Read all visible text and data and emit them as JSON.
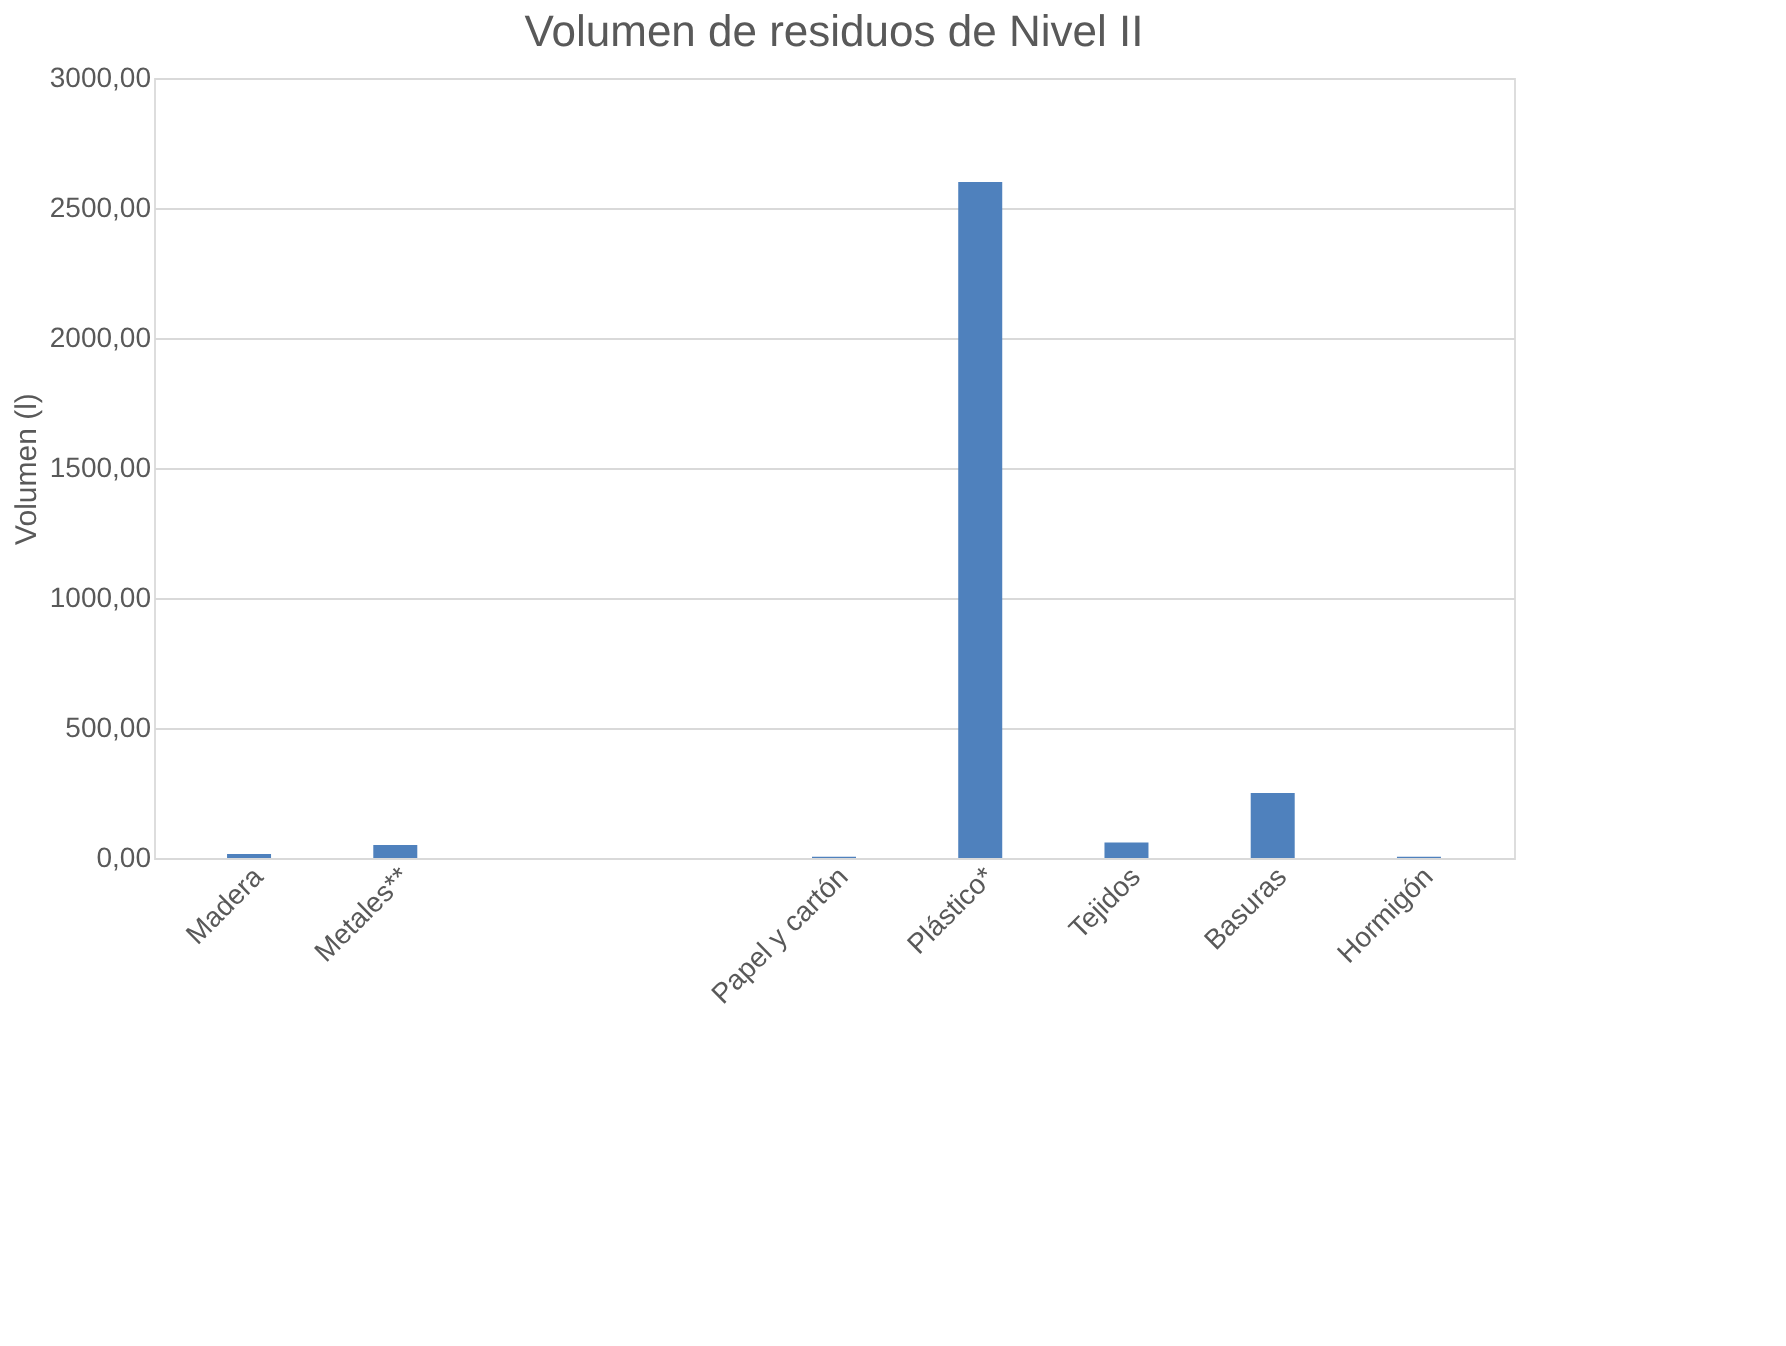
{
  "chart_data": {
    "type": "bar",
    "title": "Volumen de residuos de Nivel II",
    "ylabel": "Volumen (l)",
    "categories": [
      "Madera",
      "Metales**",
      null,
      null,
      "Papel y cartón",
      "Plástico*",
      "Tejidos",
      "Basuras",
      "Hormigón"
    ],
    "values": [
      15,
      50,
      null,
      null,
      5,
      2600,
      60,
      250,
      5
    ],
    "color": "#4f81bd",
    "ylim": [
      0,
      3000
    ],
    "yticks": [
      {
        "value": 0,
        "label": "0,00"
      },
      {
        "value": 500,
        "label": "500,00"
      },
      {
        "value": 1000,
        "label": "1000,00"
      },
      {
        "value": 1500,
        "label": "1500,00"
      },
      {
        "value": 2000,
        "label": "2000,00"
      },
      {
        "value": 2500,
        "label": "2500,00"
      },
      {
        "value": 3000,
        "label": "3000,00"
      }
    ],
    "grid": "y"
  }
}
